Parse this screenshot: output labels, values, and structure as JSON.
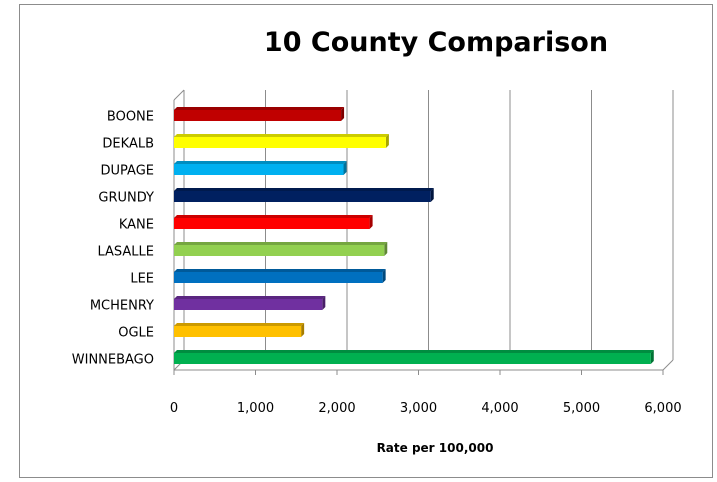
{
  "chart_data": {
    "type": "bar",
    "orientation": "horizontal",
    "title": "10 County Comparison",
    "xlabel": "Rate per 100,000",
    "ylabel": "",
    "categories": [
      "BOONE",
      "DEKALB",
      "DUPAGE",
      "GRUNDY",
      "KANE",
      "LASALLE",
      "LEE",
      "MCHENRY",
      "OGLE",
      "WINNEBAGO"
    ],
    "values": [
      2050,
      2600,
      2080,
      3150,
      2400,
      2580,
      2560,
      1820,
      1560,
      5850
    ],
    "colors": [
      "#c00000",
      "#ffff00",
      "#00b0f0",
      "#002060",
      "#ff0000",
      "#92d050",
      "#0070c0",
      "#7030a0",
      "#ffc000",
      "#00b050"
    ],
    "xlim": [
      0,
      6000
    ],
    "xticks": [
      0,
      1000,
      2000,
      3000,
      4000,
      5000,
      6000
    ],
    "xtick_labels": [
      "0",
      "1,000",
      "2,000",
      "3,000",
      "4,000",
      "5,000",
      "6,000"
    ],
    "grid": "vertical major gridlines",
    "legend": "none",
    "style": "3-D clustered bar"
  }
}
